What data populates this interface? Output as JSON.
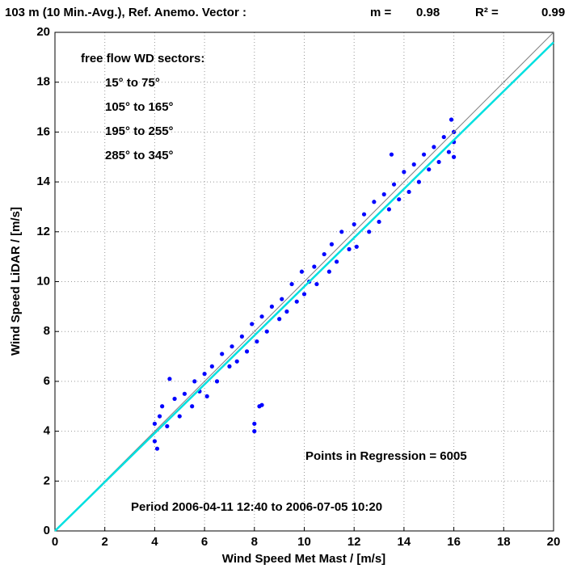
{
  "chart_data": {
    "type": "scatter",
    "title": "103 m (10 Min.-Avg.), Ref. Anemo. Vector :",
    "slope_label": "m =",
    "slope": 0.98,
    "r2_label": "R² =",
    "r2": 0.99,
    "xlabel": "Wind Speed Met Mast / [m/s]",
    "ylabel": "Wind Speed LiDAR / [m/s]",
    "xlim": [
      0,
      20
    ],
    "ylim": [
      0,
      20
    ],
    "xticks": [
      0,
      2,
      4,
      6,
      8,
      10,
      12,
      14,
      16,
      18,
      20
    ],
    "yticks": [
      0,
      2,
      4,
      6,
      8,
      10,
      12,
      14,
      16,
      18,
      20
    ],
    "grid": true,
    "annotations": [
      "free flow WD sectors:",
      "15° to 75°",
      "105° to 165°",
      "195° to 255°",
      "285° to 345°",
      "Points in Regression = 6005",
      "Period  2006-04-11 12:40  to  2006-07-05 10:20"
    ],
    "series": [
      {
        "color": "#0000ff",
        "kind": "points",
        "x": [
          4.0,
          4.0,
          4.1,
          4.2,
          4.3,
          4.5,
          4.6,
          4.8,
          5.0,
          5.2,
          5.5,
          5.6,
          5.8,
          6.0,
          6.1,
          6.3,
          6.5,
          6.7,
          7.0,
          7.1,
          7.3,
          7.5,
          7.7,
          7.9,
          8.0,
          8.0,
          8.2,
          8.3,
          8.1,
          8.3,
          8.5,
          8.7,
          9.0,
          9.1,
          9.3,
          9.5,
          9.7,
          9.9,
          10.0,
          10.2,
          10.4,
          10.5,
          10.8,
          11.0,
          11.1,
          11.3,
          11.5,
          11.8,
          12.0,
          12.1,
          12.4,
          12.6,
          12.8,
          13.0,
          13.2,
          13.4,
          13.6,
          13.5,
          13.8,
          14.0,
          14.2,
          14.4,
          14.6,
          14.8,
          15.0,
          15.2,
          15.4,
          15.6,
          15.8,
          16.0,
          16.0,
          15.9,
          16.0
        ],
        "values": [
          4.3,
          3.6,
          3.3,
          4.6,
          5.0,
          4.2,
          6.1,
          5.3,
          4.6,
          5.5,
          5.0,
          6.0,
          5.6,
          6.3,
          5.4,
          6.6,
          6.0,
          7.1,
          6.6,
          7.4,
          6.8,
          7.8,
          7.2,
          8.3,
          4.0,
          4.3,
          5.0,
          5.05,
          7.6,
          8.6,
          8.0,
          9.0,
          8.5,
          9.3,
          8.8,
          9.9,
          9.2,
          10.4,
          9.5,
          10.0,
          10.6,
          9.9,
          11.1,
          10.4,
          11.5,
          10.8,
          12.0,
          11.3,
          12.3,
          11.4,
          12.7,
          12.0,
          13.2,
          12.4,
          13.5,
          12.9,
          13.9,
          15.1,
          13.3,
          14.4,
          13.6,
          14.7,
          14.0,
          15.1,
          14.5,
          15.4,
          14.8,
          15.8,
          15.2,
          15.6,
          16.0,
          16.5,
          15.0
        ]
      },
      {
        "color": "#808080",
        "kind": "line",
        "x": [
          0,
          20
        ],
        "values": [
          0,
          20
        ]
      },
      {
        "color": "#00e0e0",
        "kind": "line",
        "x": [
          0,
          20
        ],
        "values": [
          0,
          19.6
        ]
      }
    ]
  }
}
